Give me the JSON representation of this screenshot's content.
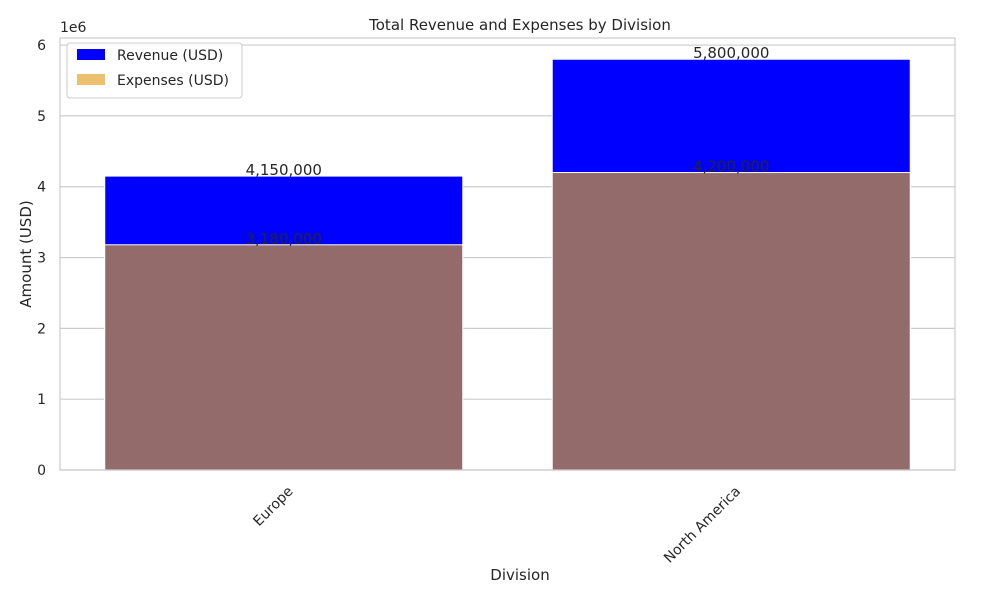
{
  "chart_data": {
    "type": "bar",
    "title": "Total Revenue and Expenses by Division",
    "xlabel": "Division",
    "ylabel": "Amount (USD)",
    "y_offset_text": "1e6",
    "categories": [
      "Europe",
      "North America"
    ],
    "series": [
      {
        "name": "Revenue (USD)",
        "values": [
          4150000,
          5800000
        ],
        "color": "#0000ff",
        "labels": [
          "4,150,000",
          "5,800,000"
        ]
      },
      {
        "name": "Expenses (USD)",
        "values": [
          3180000,
          4200000
        ],
        "color": "#e8b04b",
        "labels": [
          "3,180,000",
          "4,200,000"
        ]
      }
    ],
    "overlap_color": "#936b6b",
    "ylim": [
      0,
      6100000
    ],
    "yticks": [
      0,
      1000000,
      2000000,
      3000000,
      4000000,
      5000000,
      6000000
    ],
    "ytick_labels": [
      "0",
      "1",
      "2",
      "3",
      "4",
      "5",
      "6"
    ],
    "grid": true,
    "legend_position": "top-left"
  }
}
